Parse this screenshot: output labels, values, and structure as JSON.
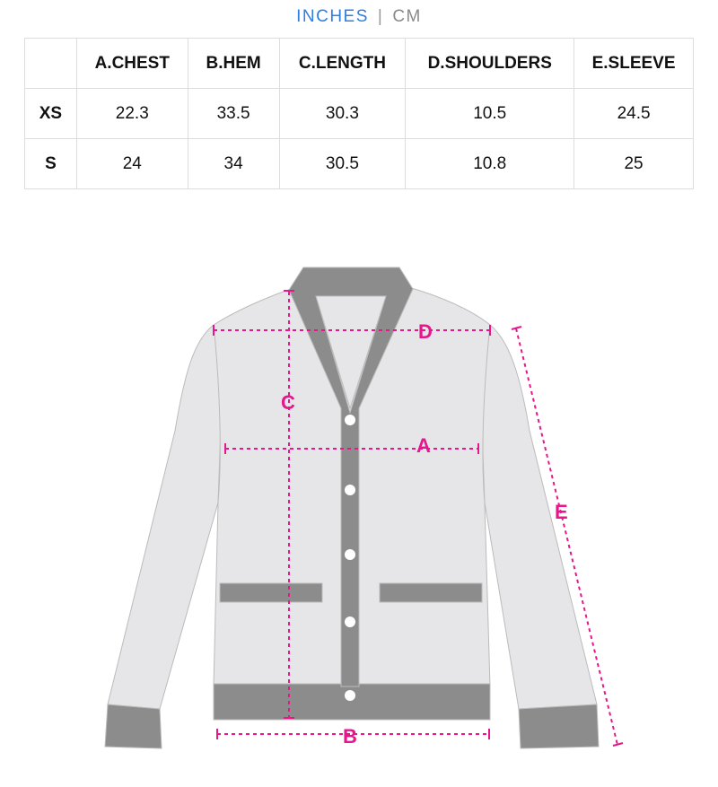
{
  "units": {
    "active": "INCHES",
    "inactive": "CM",
    "separator": "|"
  },
  "table": {
    "headers": [
      "",
      "A.CHEST",
      "B.HEM",
      "C.LENGTH",
      "D.SHOULDERS",
      "E.SLEEVE"
    ],
    "rows": [
      [
        "XS",
        "22.3",
        "33.5",
        "30.3",
        "10.5",
        "24.5"
      ],
      [
        "S",
        "24",
        "34",
        "30.5",
        "10.8",
        "25"
      ]
    ]
  },
  "diagram": {
    "labels": {
      "a": "A",
      "b": "B",
      "c": "C",
      "d": "D",
      "e": "E"
    },
    "colors": {
      "body": "#e6e6e8",
      "trim": "#8c8c8c",
      "measure": "#e6168c"
    }
  }
}
